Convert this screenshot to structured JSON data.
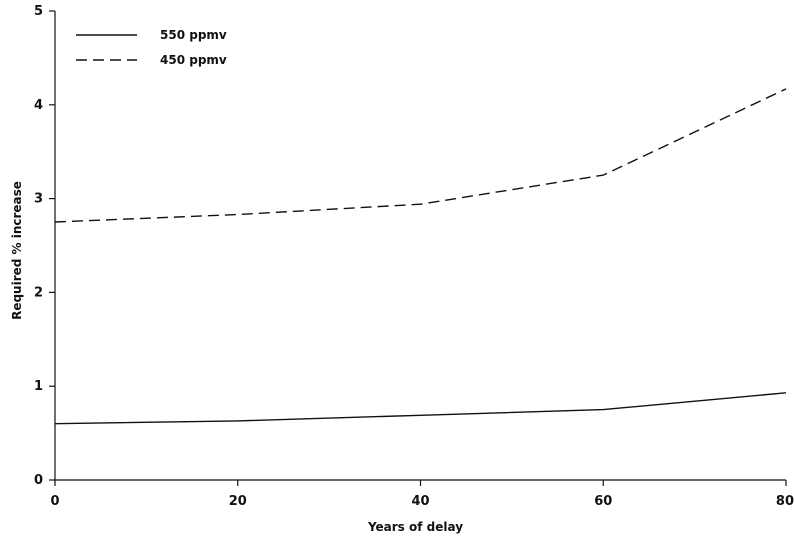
{
  "chart_data": {
    "type": "line",
    "xlabel": "Years of delay",
    "ylabel": "Required % increase",
    "x": [
      0,
      20,
      40,
      60,
      80
    ],
    "xlim": [
      0,
      80
    ],
    "ylim": [
      0,
      5
    ],
    "x_ticks": [
      "0",
      "20",
      "40",
      "60",
      "80"
    ],
    "y_ticks": [
      "0",
      "1",
      "2",
      "3",
      "4",
      "5"
    ],
    "grid": false,
    "legend_position": "top-left",
    "series": [
      {
        "name": "550 ppmv",
        "style": "solid",
        "color": "#111111",
        "values": [
          0.6,
          0.63,
          0.69,
          0.75,
          0.93
        ]
      },
      {
        "name": "450 ppmv",
        "style": "dashed",
        "color": "#111111",
        "values": [
          2.75,
          2.83,
          2.94,
          3.25,
          4.17
        ]
      }
    ]
  }
}
